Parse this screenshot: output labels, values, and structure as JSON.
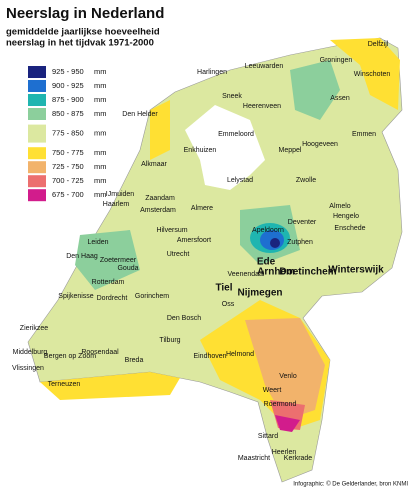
{
  "title": "Neerslag in Nederland",
  "subtitle": [
    "gemiddelde jaarlijkse hoeveelheid",
    "neerslag in het tijdvak 1971-2000"
  ],
  "legend": [
    {
      "range": "925 - 950",
      "unit": "mm",
      "color": "#1a237e"
    },
    {
      "range": "900 - 925",
      "unit": "mm",
      "color": "#1e6fd0"
    },
    {
      "range": "875 - 900",
      "unit": "mm",
      "color": "#1fb5b0"
    },
    {
      "range": "850 - 875",
      "unit": "mm",
      "color": "#8ccf9c"
    },
    {
      "range": "775 - 850",
      "unit": "mm",
      "color": "#dce8a0"
    },
    {
      "range": "750 - 775",
      "unit": "mm",
      "color": "#ffe033"
    },
    {
      "range": "725 - 750",
      "unit": "mm",
      "color": "#f2b36b"
    },
    {
      "range": "700 - 725",
      "unit": "mm",
      "color": "#ec6f6f"
    },
    {
      "range": "675 - 700",
      "unit": "mm",
      "color": "#d21c8c"
    }
  ],
  "cities": [
    "Delfzijl",
    "Groningen",
    "Harlingen",
    "Leeuwarden",
    "Winschoten",
    "Sneek",
    "Assen",
    "Heerenveen",
    "Den Helder",
    "Emmen",
    "Enkhuizen",
    "Emmeloord",
    "Meppel",
    "Hoogeveen",
    "Alkmaar",
    "Lelystad",
    "Zwolle",
    "IJmuiden",
    "Zaandam",
    "Haarlem",
    "Amsterdam",
    "Almere",
    "Almelo",
    "Hengelo",
    "Enschede",
    "Deventer",
    "Apeldoorn",
    "Zutphen",
    "Hilversum",
    "Amersfoort",
    "Leiden",
    "Den Haag",
    "Zoetermeer",
    "Gouda",
    "Utrecht",
    "Ede",
    "Arnhem",
    "Doetinchem",
    "Winterswijk",
    "Veenendaal",
    "Rotterdam",
    "Spijkenisse",
    "Dordrecht",
    "Gorinchem",
    "Tiel",
    "Nijmegen",
    "Oss",
    "Zierikzee",
    "Den Bosch",
    "Breda",
    "Roosendaal",
    "Tilburg",
    "Middelburg",
    "Bergen op Zoom",
    "Eindhoven",
    "Helmond",
    "Vlissingen",
    "Terneuzen",
    "Venlo",
    "Weert",
    "Roermond",
    "Sittard",
    "Heerlen",
    "Maastricht",
    "Kerkrade"
  ],
  "credit": "Infographic: © De Gelderlander, bron KNMI"
}
